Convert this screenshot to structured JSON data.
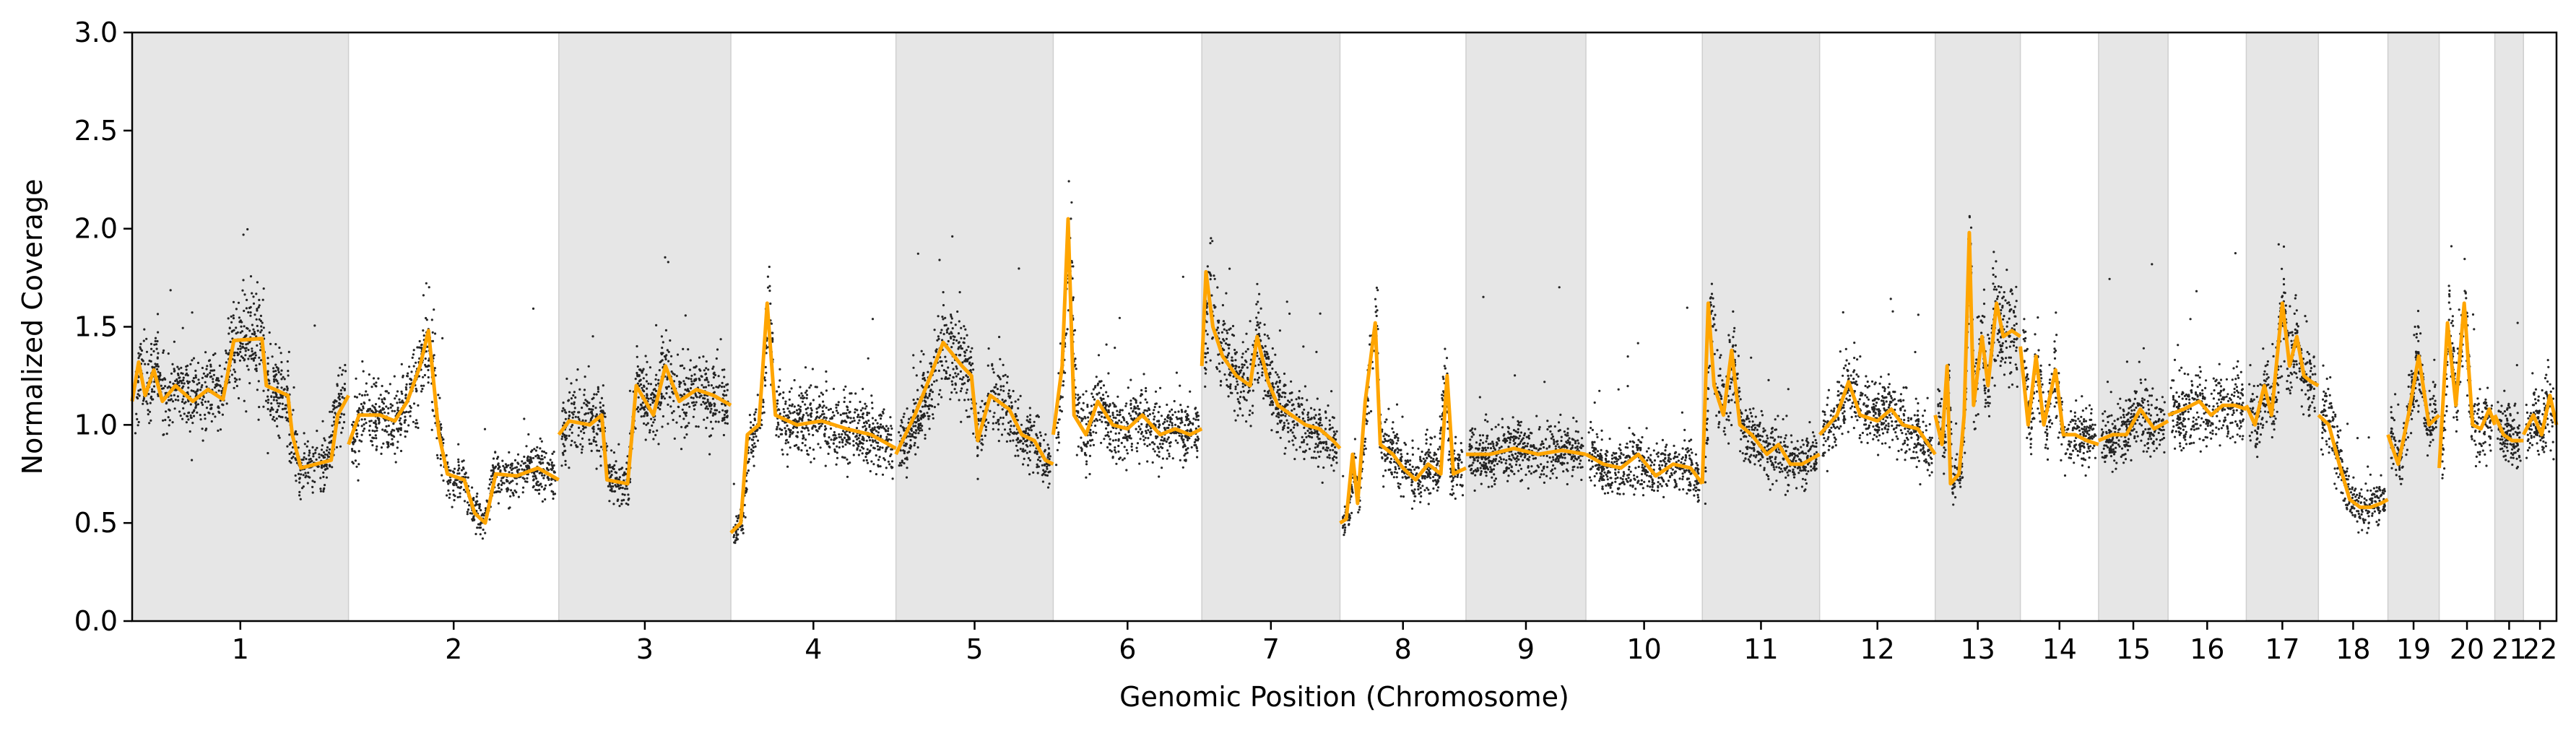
{
  "chart_data": {
    "type": "scatter",
    "title": "",
    "xlabel": "Genomic Position (Chromosome)",
    "ylabel": "Normalized Coverage",
    "ylim": [
      0.0,
      3.0
    ],
    "yticks": [
      "0.0",
      "0.5",
      "1.0",
      "1.5",
      "2.0",
      "2.5",
      "3.0"
    ],
    "grid": false,
    "legend": "none",
    "colors": {
      "points": "#000000",
      "segments": "#ffa500",
      "shade": "#e6e6e6"
    },
    "chromosomes": [
      {
        "label": "1",
        "rel_length": 249,
        "shaded": true
      },
      {
        "label": "2",
        "rel_length": 242,
        "shaded": false
      },
      {
        "label": "3",
        "rel_length": 198,
        "shaded": true
      },
      {
        "label": "4",
        "rel_length": 190,
        "shaded": false
      },
      {
        "label": "5",
        "rel_length": 181,
        "shaded": true
      },
      {
        "label": "6",
        "rel_length": 171,
        "shaded": false
      },
      {
        "label": "7",
        "rel_length": 159,
        "shaded": true
      },
      {
        "label": "8",
        "rel_length": 145,
        "shaded": false
      },
      {
        "label": "9",
        "rel_length": 138,
        "shaded": true
      },
      {
        "label": "10",
        "rel_length": 134,
        "shaded": false
      },
      {
        "label": "11",
        "rel_length": 135,
        "shaded": true
      },
      {
        "label": "12",
        "rel_length": 133,
        "shaded": false
      },
      {
        "label": "13",
        "rel_length": 98,
        "shaded": true
      },
      {
        "label": "14",
        "rel_length": 90,
        "shaded": false
      },
      {
        "label": "15",
        "rel_length": 80,
        "shaded": true
      },
      {
        "label": "16",
        "rel_length": 90,
        "shaded": false
      },
      {
        "label": "17",
        "rel_length": 83,
        "shaded": true
      },
      {
        "label": "18",
        "rel_length": 80,
        "shaded": false
      },
      {
        "label": "19",
        "rel_length": 59,
        "shaded": true
      },
      {
        "label": "20",
        "rel_length": 64,
        "shaded": false
      },
      {
        "label": "21",
        "rel_length": 33,
        "shaded": true
      },
      {
        "label": "22",
        "rel_length": 38,
        "shaded": false
      }
    ],
    "segments": [
      {
        "chrom": "1",
        "points": [
          [
            0,
            1.12
          ],
          [
            0.03,
            1.32
          ],
          [
            0.06,
            1.15
          ],
          [
            0.1,
            1.28
          ],
          [
            0.14,
            1.12
          ],
          [
            0.2,
            1.2
          ],
          [
            0.28,
            1.12
          ],
          [
            0.35,
            1.18
          ],
          [
            0.42,
            1.13
          ],
          [
            0.47,
            1.43
          ],
          [
            0.6,
            1.44
          ],
          [
            0.62,
            1.2
          ],
          [
            0.72,
            1.15
          ],
          [
            0.74,
            0.95
          ],
          [
            0.78,
            0.78
          ],
          [
            0.92,
            0.82
          ],
          [
            0.95,
            1.05
          ],
          [
            1,
            1.15
          ]
        ]
      },
      {
        "chrom": "2",
        "points": [
          [
            0,
            0.9
          ],
          [
            0.05,
            1.05
          ],
          [
            0.15,
            1.05
          ],
          [
            0.22,
            1.02
          ],
          [
            0.28,
            1.12
          ],
          [
            0.34,
            1.3
          ],
          [
            0.38,
            1.48
          ],
          [
            0.43,
            0.95
          ],
          [
            0.47,
            0.75
          ],
          [
            0.55,
            0.72
          ],
          [
            0.6,
            0.55
          ],
          [
            0.65,
            0.5
          ],
          [
            0.7,
            0.75
          ],
          [
            0.8,
            0.74
          ],
          [
            0.9,
            0.78
          ],
          [
            1,
            0.72
          ]
        ]
      },
      {
        "chrom": "3",
        "points": [
          [
            0,
            0.95
          ],
          [
            0.06,
            1.02
          ],
          [
            0.18,
            1.0
          ],
          [
            0.25,
            1.05
          ],
          [
            0.28,
            0.72
          ],
          [
            0.4,
            0.7
          ],
          [
            0.45,
            1.2
          ],
          [
            0.55,
            1.05
          ],
          [
            0.62,
            1.3
          ],
          [
            0.7,
            1.12
          ],
          [
            0.8,
            1.18
          ],
          [
            0.9,
            1.15
          ],
          [
            1,
            1.1
          ]
        ]
      },
      {
        "chrom": "4",
        "points": [
          [
            0,
            0.45
          ],
          [
            0.06,
            0.5
          ],
          [
            0.1,
            0.95
          ],
          [
            0.17,
            1.0
          ],
          [
            0.22,
            1.62
          ],
          [
            0.27,
            1.05
          ],
          [
            0.4,
            1.0
          ],
          [
            0.55,
            1.02
          ],
          [
            0.7,
            0.98
          ],
          [
            0.85,
            0.95
          ],
          [
            1,
            0.88
          ]
        ]
      },
      {
        "chrom": "5",
        "points": [
          [
            0,
            0.85
          ],
          [
            0.12,
            1.05
          ],
          [
            0.22,
            1.25
          ],
          [
            0.3,
            1.42
          ],
          [
            0.42,
            1.3
          ],
          [
            0.48,
            1.25
          ],
          [
            0.52,
            0.92
          ],
          [
            0.6,
            1.15
          ],
          [
            0.72,
            1.08
          ],
          [
            0.8,
            0.95
          ],
          [
            0.88,
            0.92
          ],
          [
            0.95,
            0.82
          ],
          [
            1,
            0.8
          ]
        ]
      },
      {
        "chrom": "6",
        "points": [
          [
            0,
            0.95
          ],
          [
            0.06,
            1.3
          ],
          [
            0.1,
            2.05
          ],
          [
            0.14,
            1.05
          ],
          [
            0.22,
            0.95
          ],
          [
            0.3,
            1.12
          ],
          [
            0.4,
            1.0
          ],
          [
            0.5,
            0.98
          ],
          [
            0.6,
            1.05
          ],
          [
            0.72,
            0.95
          ],
          [
            0.82,
            0.98
          ],
          [
            0.92,
            0.95
          ],
          [
            1,
            0.98
          ]
        ]
      },
      {
        "chrom": "7",
        "points": [
          [
            0,
            1.3
          ],
          [
            0.03,
            1.78
          ],
          [
            0.08,
            1.5
          ],
          [
            0.15,
            1.35
          ],
          [
            0.25,
            1.25
          ],
          [
            0.35,
            1.2
          ],
          [
            0.4,
            1.45
          ],
          [
            0.48,
            1.22
          ],
          [
            0.55,
            1.1
          ],
          [
            0.65,
            1.05
          ],
          [
            0.75,
            1.0
          ],
          [
            0.85,
            0.98
          ],
          [
            0.95,
            0.92
          ],
          [
            1,
            0.88
          ]
        ]
      },
      {
        "chrom": "8",
        "points": [
          [
            0,
            0.5
          ],
          [
            0.05,
            0.52
          ],
          [
            0.1,
            0.85
          ],
          [
            0.14,
            0.6
          ],
          [
            0.2,
            1.12
          ],
          [
            0.28,
            1.52
          ],
          [
            0.32,
            0.9
          ],
          [
            0.42,
            0.85
          ],
          [
            0.5,
            0.78
          ],
          [
            0.6,
            0.72
          ],
          [
            0.7,
            0.8
          ],
          [
            0.8,
            0.75
          ],
          [
            0.85,
            1.25
          ],
          [
            0.9,
            0.75
          ],
          [
            1,
            0.78
          ]
        ]
      },
      {
        "chrom": "9",
        "points": [
          [
            0,
            0.85
          ],
          [
            0.2,
            0.85
          ],
          [
            0.4,
            0.88
          ],
          [
            0.6,
            0.85
          ],
          [
            0.8,
            0.87
          ],
          [
            1,
            0.85
          ]
        ]
      },
      {
        "chrom": "10",
        "points": [
          [
            0,
            0.85
          ],
          [
            0.15,
            0.8
          ],
          [
            0.3,
            0.78
          ],
          [
            0.45,
            0.85
          ],
          [
            0.6,
            0.74
          ],
          [
            0.75,
            0.8
          ],
          [
            0.9,
            0.78
          ],
          [
            1,
            0.7
          ]
        ]
      },
      {
        "chrom": "11",
        "points": [
          [
            0,
            0.7
          ],
          [
            0.05,
            1.62
          ],
          [
            0.1,
            1.2
          ],
          [
            0.18,
            1.05
          ],
          [
            0.25,
            1.38
          ],
          [
            0.32,
            1.0
          ],
          [
            0.42,
            0.95
          ],
          [
            0.55,
            0.85
          ],
          [
            0.65,
            0.9
          ],
          [
            0.75,
            0.8
          ],
          [
            0.85,
            0.8
          ],
          [
            1,
            0.85
          ]
        ]
      },
      {
        "chrom": "12",
        "points": [
          [
            0,
            0.95
          ],
          [
            0.15,
            1.05
          ],
          [
            0.25,
            1.22
          ],
          [
            0.35,
            1.05
          ],
          [
            0.5,
            1.02
          ],
          [
            0.62,
            1.08
          ],
          [
            0.72,
            1.0
          ],
          [
            0.85,
            0.98
          ],
          [
            1,
            0.85
          ]
        ]
      },
      {
        "chrom": "13",
        "points": [
          [
            0,
            1.05
          ],
          [
            0.08,
            0.9
          ],
          [
            0.14,
            1.3
          ],
          [
            0.18,
            0.7
          ],
          [
            0.28,
            0.75
          ],
          [
            0.34,
            1.05
          ],
          [
            0.4,
            1.98
          ],
          [
            0.45,
            1.1
          ],
          [
            0.55,
            1.45
          ],
          [
            0.62,
            1.2
          ],
          [
            0.72,
            1.62
          ],
          [
            0.8,
            1.45
          ],
          [
            0.9,
            1.48
          ],
          [
            1,
            1.45
          ]
        ]
      },
      {
        "chrom": "14",
        "points": [
          [
            0,
            1.4
          ],
          [
            0.1,
            1.0
          ],
          [
            0.2,
            1.35
          ],
          [
            0.3,
            1.0
          ],
          [
            0.45,
            1.28
          ],
          [
            0.55,
            0.95
          ],
          [
            0.7,
            0.95
          ],
          [
            0.85,
            0.92
          ],
          [
            1,
            0.9
          ]
        ]
      },
      {
        "chrom": "15",
        "points": [
          [
            0,
            0.92
          ],
          [
            0.2,
            0.95
          ],
          [
            0.4,
            0.95
          ],
          [
            0.6,
            1.08
          ],
          [
            0.8,
            0.98
          ],
          [
            1,
            1.02
          ]
        ]
      },
      {
        "chrom": "16",
        "points": [
          [
            0,
            1.05
          ],
          [
            0.2,
            1.08
          ],
          [
            0.4,
            1.12
          ],
          [
            0.55,
            1.05
          ],
          [
            0.7,
            1.1
          ],
          [
            0.85,
            1.1
          ],
          [
            1,
            1.08
          ]
        ]
      },
      {
        "chrom": "17",
        "points": [
          [
            0,
            1.1
          ],
          [
            0.12,
            1.0
          ],
          [
            0.25,
            1.2
          ],
          [
            0.35,
            1.05
          ],
          [
            0.5,
            1.62
          ],
          [
            0.6,
            1.3
          ],
          [
            0.7,
            1.45
          ],
          [
            0.8,
            1.25
          ],
          [
            0.9,
            1.22
          ],
          [
            1,
            1.2
          ]
        ]
      },
      {
        "chrom": "18",
        "points": [
          [
            0,
            1.05
          ],
          [
            0.15,
            1.0
          ],
          [
            0.3,
            0.8
          ],
          [
            0.45,
            0.62
          ],
          [
            0.6,
            0.58
          ],
          [
            0.75,
            0.58
          ],
          [
            0.9,
            0.6
          ],
          [
            1,
            0.62
          ]
        ]
      },
      {
        "chrom": "19",
        "points": [
          [
            0,
            0.95
          ],
          [
            0.2,
            0.8
          ],
          [
            0.4,
            1.05
          ],
          [
            0.6,
            1.35
          ],
          [
            0.8,
            1.0
          ],
          [
            1,
            1.05
          ]
        ]
      },
      {
        "chrom": "20",
        "points": [
          [
            0,
            0.78
          ],
          [
            0.15,
            1.52
          ],
          [
            0.3,
            1.1
          ],
          [
            0.45,
            1.62
          ],
          [
            0.6,
            1.0
          ],
          [
            0.75,
            0.98
          ],
          [
            0.9,
            1.08
          ],
          [
            1,
            1.0
          ]
        ]
      },
      {
        "chrom": "21",
        "points": [
          [
            0,
            1.05
          ],
          [
            0.3,
            0.95
          ],
          [
            0.6,
            0.92
          ],
          [
            1,
            0.92
          ]
        ]
      },
      {
        "chrom": "22",
        "points": [
          [
            0,
            0.95
          ],
          [
            0.3,
            1.05
          ],
          [
            0.55,
            0.95
          ],
          [
            0.8,
            1.15
          ],
          [
            1,
            1.0
          ]
        ]
      }
    ]
  }
}
